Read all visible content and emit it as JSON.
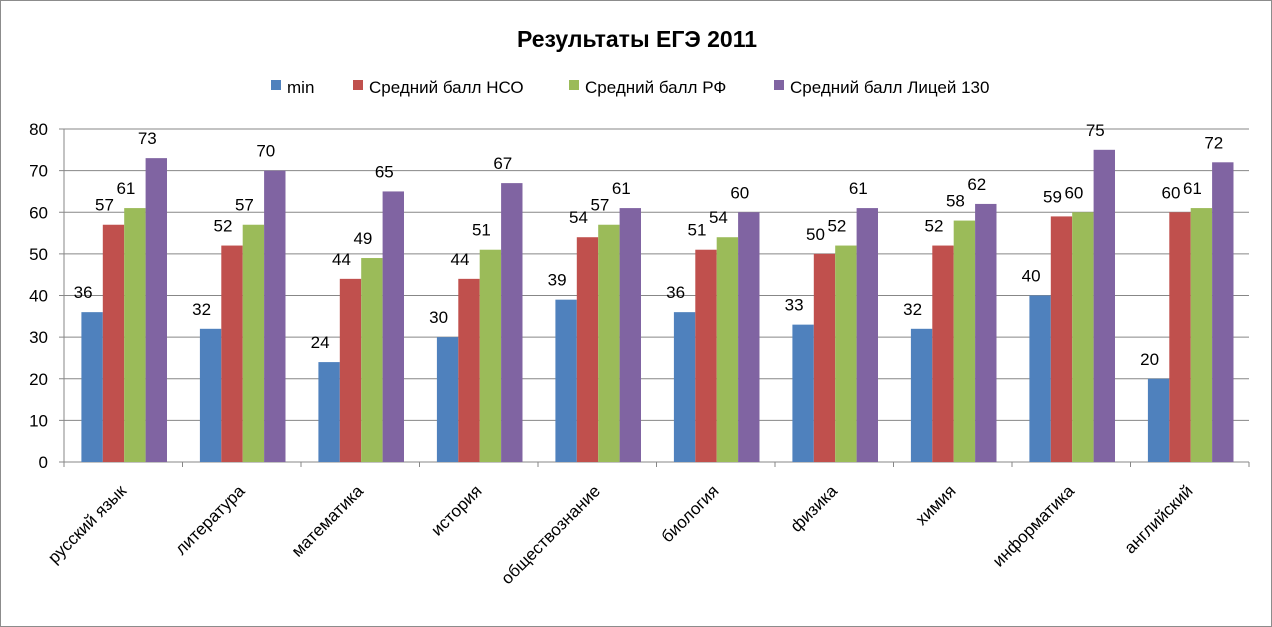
{
  "chart_data": {
    "type": "bar",
    "title": "Результаты ЕГЭ 2011",
    "xlabel": "",
    "ylabel": "",
    "ylim": [
      0,
      80
    ],
    "yticks": [
      0,
      10,
      20,
      30,
      40,
      50,
      60,
      70,
      80
    ],
    "grid": true,
    "legend_position": "top",
    "categories": [
      "русский язык",
      "литература",
      "математика",
      "история",
      "обществознание",
      "биология",
      "физика",
      "химия",
      "информатика",
      "английский"
    ],
    "series": [
      {
        "name": "min",
        "color": "#4f81bd",
        "values": [
          36,
          32,
          24,
          30,
          39,
          36,
          33,
          32,
          40,
          20
        ]
      },
      {
        "name": "Средний балл НСО",
        "color": "#c0504d",
        "values": [
          57,
          52,
          44,
          44,
          54,
          51,
          50,
          52,
          59,
          60
        ]
      },
      {
        "name": "Средний балл РФ",
        "color": "#9bbb59",
        "values": [
          61,
          57,
          49,
          51,
          57,
          54,
          52,
          58,
          60,
          61
        ]
      },
      {
        "name": "Средний балл Лицей 130",
        "color": "#8064a2",
        "values": [
          73,
          70,
          65,
          67,
          61,
          60,
          61,
          62,
          75,
          72
        ]
      }
    ]
  }
}
